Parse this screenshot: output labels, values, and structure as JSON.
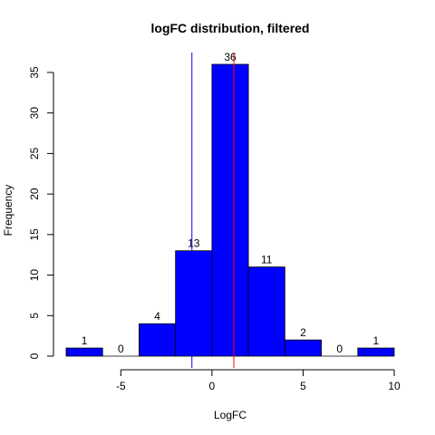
{
  "chart_data": {
    "type": "bar",
    "title": "logFC distribution, filtered",
    "xlabel": "LogFC",
    "ylabel": "Frequency",
    "xlim": [
      -8,
      10
    ],
    "ylim": [
      0,
      36
    ],
    "x_ticks": [
      -5,
      0,
      5,
      10
    ],
    "y_ticks": [
      0,
      5,
      10,
      15,
      20,
      25,
      30,
      35
    ],
    "bins": [
      {
        "start": -8,
        "end": -6,
        "count": 1
      },
      {
        "start": -6,
        "end": -4,
        "count": 0
      },
      {
        "start": -4,
        "end": -2,
        "count": 4
      },
      {
        "start": -2,
        "end": 0,
        "count": 13
      },
      {
        "start": 0,
        "end": 2,
        "count": 36
      },
      {
        "start": 2,
        "end": 4,
        "count": 11
      },
      {
        "start": 4,
        "end": 6,
        "count": 2
      },
      {
        "start": 6,
        "end": 8,
        "count": 0
      },
      {
        "start": 8,
        "end": 10,
        "count": 1
      }
    ],
    "vlines": [
      {
        "x": -1.1,
        "color": "#0000ff"
      },
      {
        "x": 1.2,
        "color": "#ff0000"
      }
    ],
    "bar_color": "#0000ff",
    "grid": false
  }
}
